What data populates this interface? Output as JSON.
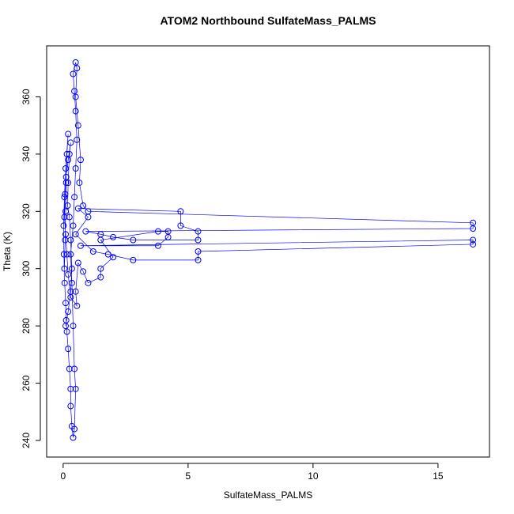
{
  "chart_data": {
    "type": "scatter",
    "title": "ATOM2 Northbound SulfateMass_PALMS",
    "x_label": "SulfateMass_PALMS",
    "y_label": "Theta (K)",
    "lines": true,
    "xlim": [
      -0.66,
      17.06
    ],
    "ylim": [
      234.2,
      377.8
    ],
    "xticks": [
      0,
      5,
      10,
      15
    ],
    "yticks": [
      240,
      260,
      280,
      300,
      320,
      340,
      360
    ],
    "series": [
      {
        "color": "#0000ff",
        "x": [
          0.05,
          0.08,
          0.1,
          0.12,
          0.15,
          0.2,
          0.1,
          0.05,
          0.02,
          0.03,
          0.06,
          0.1,
          0.12,
          0.15,
          0.2,
          0.25,
          0.3,
          0.3,
          0.35,
          0.4,
          0.45,
          0.5,
          0.45,
          0.4,
          0.35,
          0.3,
          0.4,
          0.45,
          0.5,
          0.55,
          0.5,
          0.45,
          0.4,
          0.5,
          0.55,
          0.5,
          0.6,
          0.7,
          0.65,
          0.8,
          1.0,
          16.4,
          16.4,
          0.9,
          1.5,
          2.0,
          2.8,
          5.4,
          5.4,
          4.7,
          4.7,
          0.6,
          1.0,
          0.5,
          1.2,
          1.8,
          2.8,
          5.4,
          5.4,
          16.4,
          16.4,
          0.7,
          3.8,
          4.2,
          4.2,
          3.8,
          1.5,
          2.0,
          1.5,
          1.5,
          1.0,
          0.8,
          0.6,
          0.5,
          0.55,
          0.3,
          0.2,
          0.15,
          0.1,
          0.05,
          0.08,
          0.12,
          0.2,
          0.3,
          0.25,
          0.2,
          0.18,
          0.25,
          0.3,
          0.35,
          0.3,
          0.2,
          0.1
        ],
        "y": [
          300,
          310,
          320,
          330,
          340,
          347,
          335,
          325,
          315,
          305,
          295,
          288,
          282,
          278,
          272,
          265,
          258,
          252,
          245,
          241,
          244,
          258,
          265,
          280,
          295,
          305,
          315,
          325,
          335,
          345,
          355,
          362,
          368,
          372,
          370,
          360,
          350,
          338,
          330,
          322,
          320,
          316,
          314,
          313,
          312,
          311,
          310,
          310,
          313,
          315,
          320,
          321,
          318,
          312,
          306,
          305,
          303,
          303,
          306,
          308.5,
          310,
          308,
          308,
          311,
          313,
          313,
          310,
          304,
          300,
          297,
          295,
          299,
          302,
          292,
          287,
          290,
          298,
          305,
          312,
          318,
          326,
          332,
          338,
          344,
          340,
          330,
          322,
          318,
          310,
          300,
          292,
          285,
          280
        ]
      }
    ]
  }
}
